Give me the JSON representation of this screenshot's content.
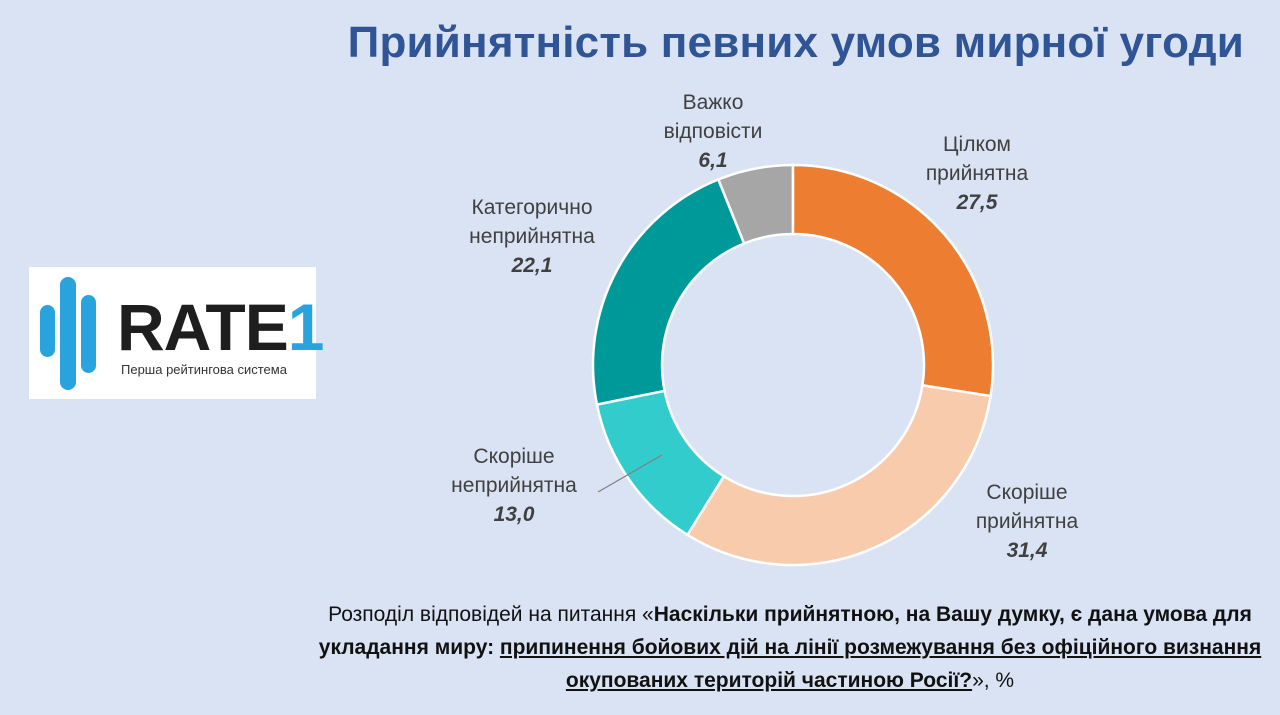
{
  "title": "Прийнятність певних умов мирної угоди",
  "logo": {
    "name": "RATE",
    "digit": "1",
    "tagline": "Перша рейтингова система"
  },
  "chart_data": {
    "type": "pie",
    "subtype": "donut",
    "title": "Прийнятність певних умов мирної угоди",
    "unit": "%",
    "slices": [
      {
        "label_line1": "Цілком",
        "label_line2": "прийнятна",
        "value": 27.5,
        "display": "27,5",
        "color": "#ed7d31"
      },
      {
        "label_line1": "Скоріше",
        "label_line2": "прийнятна",
        "value": 31.4,
        "display": "31,4",
        "color": "#f8cbad"
      },
      {
        "label_line1": "Скоріше",
        "label_line2": "неприйнятна",
        "value": 13.0,
        "display": "13,0",
        "color": "#33cccc"
      },
      {
        "label_line1": "Категорично",
        "label_line2": "неприйнятна",
        "value": 22.1,
        "display": "22,1",
        "color": "#009999"
      },
      {
        "label_line1": "Важко",
        "label_line2": "відповісти",
        "value": 6.1,
        "display": "6,1",
        "color": "#a6a6a6"
      }
    ]
  },
  "caption": {
    "plain": "Розподіл відповідей на питання «",
    "bold": "Наскільки прийнятною, на Вашу думку, є дана умова для укладання миру: ",
    "underlined": "припинення бойових дій на лінії розмежування без офіційного визнання окупованих територій частиною Росії?",
    "tail": "», %"
  }
}
